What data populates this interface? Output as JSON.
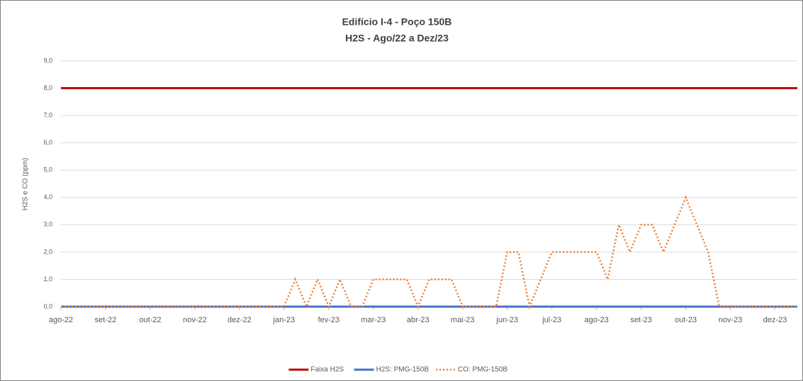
{
  "chart_data": {
    "type": "line",
    "title": "Edifício I-4 - Poço 150B",
    "subtitle": "H2S - Ago/22 a Dez/23",
    "y_label": "H2S e CO (ppm)",
    "categories": [
      "ago-22",
      null,
      null,
      null,
      "set-22",
      null,
      null,
      null,
      "out-22",
      null,
      null,
      null,
      "nov-22",
      null,
      null,
      null,
      "dez-22",
      null,
      null,
      null,
      "jan-23",
      null,
      null,
      null,
      "fev-23",
      null,
      null,
      null,
      "mar-23",
      null,
      null,
      null,
      "abr-23",
      null,
      null,
      null,
      "mai-23",
      null,
      null,
      null,
      "jun-23",
      null,
      null,
      null,
      "jul-23",
      null,
      null,
      null,
      "ago-23",
      null,
      null,
      null,
      "set-23",
      null,
      null,
      null,
      "out-23",
      null,
      null,
      null,
      "nov-23",
      null,
      null,
      null,
      "dez-23",
      null,
      null
    ],
    "series": [
      {
        "name": "Faixa H2S",
        "color": "#c00000",
        "line_style": "solid",
        "values": [
          8,
          8,
          8,
          8,
          8,
          8,
          8,
          8,
          8,
          8,
          8,
          8,
          8,
          8,
          8,
          8,
          8,
          8,
          8,
          8,
          8,
          8,
          8,
          8,
          8,
          8,
          8,
          8,
          8,
          8,
          8,
          8,
          8,
          8,
          8,
          8,
          8,
          8,
          8,
          8,
          8,
          8,
          8,
          8,
          8,
          8,
          8,
          8,
          8,
          8,
          8,
          8,
          8,
          8,
          8,
          8,
          8,
          8,
          8,
          8,
          8,
          8,
          8,
          8,
          8,
          8,
          8
        ]
      },
      {
        "name": "H2S: PMG-150B",
        "color": "#4472c4",
        "line_style": "solid",
        "values": [
          0,
          0,
          0,
          0,
          0,
          0,
          0,
          0,
          0,
          0,
          0,
          0,
          0,
          0,
          0,
          0,
          0,
          0,
          0,
          0,
          0,
          0,
          0,
          0,
          0,
          0,
          0,
          0,
          0,
          0,
          0,
          0,
          0,
          0,
          0,
          0,
          0,
          0,
          0,
          0,
          0,
          0,
          0,
          0,
          0,
          0,
          0,
          0,
          0,
          0,
          0,
          0,
          0,
          0,
          0,
          0,
          0,
          0,
          0,
          0,
          0,
          0,
          0,
          0,
          0,
          0,
          0
        ]
      },
      {
        "name": "CO: PMG-150B",
        "color": "#ed7d31",
        "line_style": "dotted",
        "values": [
          0,
          0,
          0,
          0,
          0,
          0,
          0,
          0,
          0,
          0,
          0,
          0,
          0,
          0,
          0,
          0,
          0,
          0,
          0,
          0,
          0,
          1,
          0,
          1,
          0,
          1,
          0,
          0,
          1,
          1,
          1,
          1,
          0,
          1,
          1,
          1,
          0,
          0,
          0,
          0,
          2,
          2,
          0,
          1,
          2,
          2,
          2,
          2,
          2,
          1,
          3,
          2,
          3,
          3,
          2,
          3,
          4,
          3,
          2,
          0,
          0,
          0,
          0,
          0,
          0,
          0,
          0
        ]
      }
    ],
    "ylim": [
      0,
      9
    ],
    "yticks": [
      {
        "value": 0,
        "label": "0,0"
      },
      {
        "value": 1,
        "label": "1,0"
      },
      {
        "value": 2,
        "label": "2,0"
      },
      {
        "value": 3,
        "label": "3,0"
      },
      {
        "value": 4,
        "label": "4,0"
      },
      {
        "value": 5,
        "label": "5,0"
      },
      {
        "value": 6,
        "label": "6,0"
      },
      {
        "value": 7,
        "label": "7,0"
      },
      {
        "value": 8,
        "label": "8,0"
      },
      {
        "value": 9,
        "label": "9,0"
      }
    ],
    "grid": true,
    "legend": "bottom"
  }
}
